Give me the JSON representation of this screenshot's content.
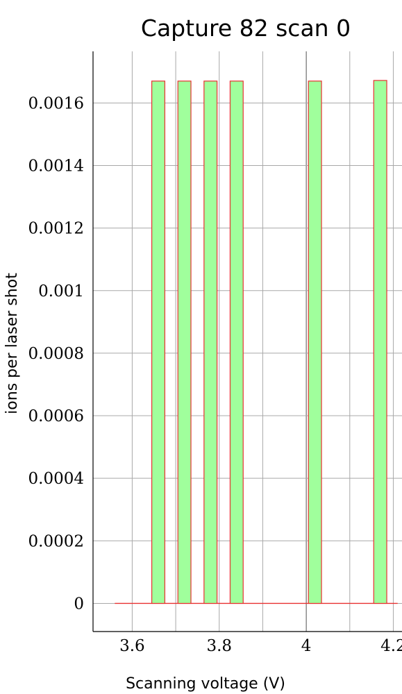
{
  "chart_data": {
    "type": "bar",
    "title": "Capture 82 scan 0",
    "xlabel": "Scanning voltage (V)",
    "ylabel": "ions per laser shot",
    "xlim": [
      3.51,
      4.22
    ],
    "ylim": [
      -9e-05,
      0.001765
    ],
    "x_ticks": [
      {
        "value": 3.6,
        "label": "3.6"
      },
      {
        "value": 3.8,
        "label": "3.8"
      },
      {
        "value": 4.0,
        "label": "4"
      },
      {
        "value": 4.2,
        "label": "4.2"
      }
    ],
    "y_ticks": [
      {
        "value": 0,
        "label": "0"
      },
      {
        "value": 0.0002,
        "label": "0.0002"
      },
      {
        "value": 0.0004,
        "label": "0.0004"
      },
      {
        "value": 0.0006,
        "label": "0.0006"
      },
      {
        "value": 0.0008,
        "label": "0.0008"
      },
      {
        "value": 0.001,
        "label": "0.001"
      },
      {
        "value": 0.0012,
        "label": "0.0012"
      },
      {
        "value": 0.0014,
        "label": "0.0014"
      },
      {
        "value": 0.0016,
        "label": "0.0016"
      }
    ],
    "x_range": [
      3.56,
      4.21
    ],
    "bar_width": 0.06,
    "bars": [
      {
        "x": 3.66,
        "value": 0.00167
      },
      {
        "x": 3.72,
        "value": 0.00167
      },
      {
        "x": 3.78,
        "value": 0.00167
      },
      {
        "x": 3.84,
        "value": 0.00167
      },
      {
        "x": 4.02,
        "value": 0.00167
      },
      {
        "x": 4.17,
        "value": 0.001672
      }
    ],
    "grid": true,
    "colors": {
      "bar_fill": "#a0ff9c",
      "bar_stroke": "#e83030",
      "baseline": "#e83030"
    }
  }
}
